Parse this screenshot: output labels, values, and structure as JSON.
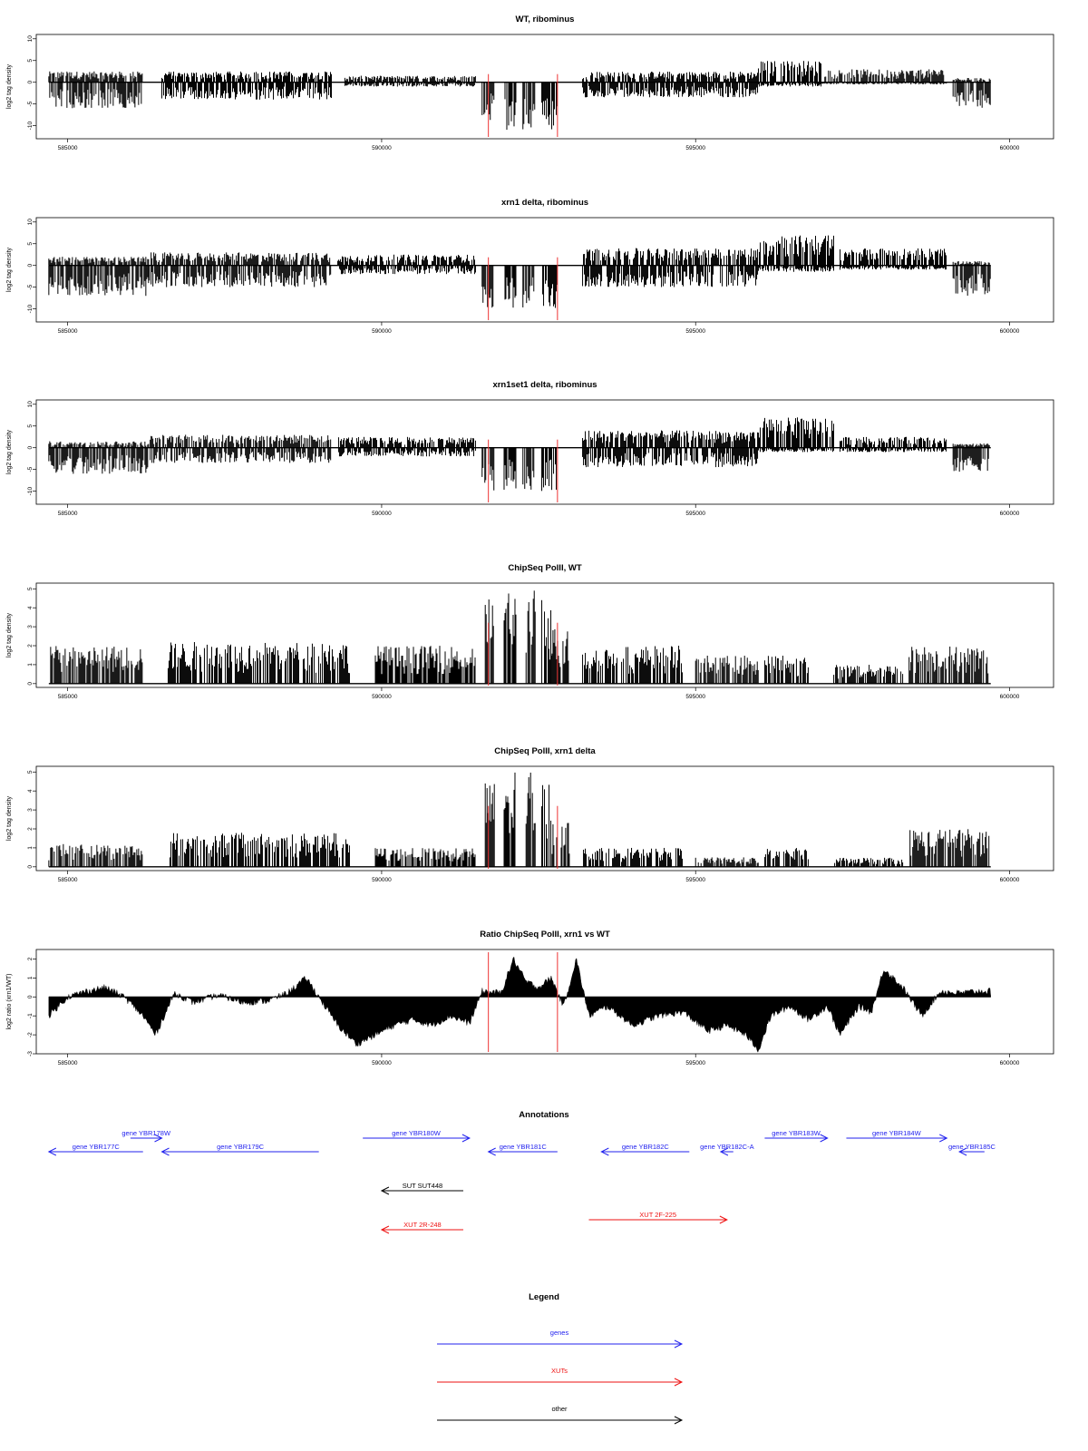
{
  "colors": {
    "gene": "#2222ee",
    "xut": "#ee1111",
    "other": "#000000",
    "marker": "#ee3333",
    "bar": "#000000"
  },
  "chart_data": [
    {
      "type": "bar",
      "title": "WT, ribominus",
      "ylabel": "log2 tag density",
      "xlim": [
        584500,
        600700
      ],
      "ylim": [
        -13,
        11
      ],
      "yticks": [
        -10,
        -5,
        0,
        5,
        10
      ],
      "xticks": [
        585000,
        590000,
        595000,
        600000
      ],
      "x_tick_labels": [
        "585000",
        "590000",
        "595000",
        "600000"
      ],
      "red_markers": [
        591700,
        592800
      ],
      "profile": {
        "baseline": 0,
        "pos": [
          [
            584700,
            586200,
            2.5
          ],
          [
            586500,
            589200,
            2.5
          ],
          [
            589400,
            591500,
            1.5
          ],
          [
            593200,
            596000,
            2.5
          ],
          [
            596000,
            597000,
            5
          ],
          [
            597000,
            599000,
            3
          ],
          [
            599100,
            599700,
            1
          ]
        ],
        "neg": [
          [
            584700,
            586200,
            -6
          ],
          [
            586500,
            589200,
            -4
          ],
          [
            589400,
            591500,
            -1
          ],
          [
            591600,
            591800,
            -10
          ],
          [
            591950,
            592150,
            -11
          ],
          [
            592250,
            592450,
            -11
          ],
          [
            592550,
            592800,
            -11
          ],
          [
            593200,
            596000,
            -3.5
          ],
          [
            596000,
            597000,
            -1
          ],
          [
            597000,
            599000,
            -0.5
          ],
          [
            599100,
            599700,
            -6
          ]
        ]
      }
    },
    {
      "type": "bar",
      "title": "xrn1 delta, ribominus",
      "ylabel": "log2 tag density",
      "xlim": [
        584500,
        600700
      ],
      "ylim": [
        -13,
        11
      ],
      "yticks": [
        -10,
        -5,
        0,
        5,
        10
      ],
      "xticks": [
        585000,
        590000,
        595000,
        600000
      ],
      "x_tick_labels": [
        "585000",
        "590000",
        "595000",
        "600000"
      ],
      "red_markers": [
        591700,
        592800
      ],
      "profile": {
        "baseline": 0,
        "pos": [
          [
            584700,
            586300,
            2
          ],
          [
            586300,
            589200,
            3
          ],
          [
            589300,
            591500,
            2.5
          ],
          [
            593200,
            596000,
            4
          ],
          [
            596000,
            597200,
            7
          ],
          [
            597300,
            599000,
            4
          ],
          [
            599100,
            599700,
            1
          ]
        ],
        "neg": [
          [
            584700,
            586300,
            -7
          ],
          [
            586300,
            589200,
            -5
          ],
          [
            589300,
            591500,
            -2
          ],
          [
            591600,
            591800,
            -10
          ],
          [
            591950,
            592150,
            -10.5
          ],
          [
            592250,
            592450,
            -10.5
          ],
          [
            592550,
            592800,
            -10.5
          ],
          [
            593200,
            596000,
            -5
          ],
          [
            596000,
            597200,
            -1.5
          ],
          [
            597300,
            599000,
            -1
          ],
          [
            599100,
            599700,
            -7
          ]
        ]
      }
    },
    {
      "type": "bar",
      "title": "xrn1set1 delta, ribominus",
      "ylabel": "log2 tag density",
      "xlim": [
        584500,
        600700
      ],
      "ylim": [
        -13,
        11
      ],
      "yticks": [
        -10,
        -5,
        0,
        5,
        10
      ],
      "xticks": [
        585000,
        590000,
        595000,
        600000
      ],
      "x_tick_labels": [
        "585000",
        "590000",
        "595000",
        "600000"
      ],
      "red_markers": [
        591700,
        592800
      ],
      "profile": {
        "baseline": 0,
        "pos": [
          [
            584700,
            586300,
            1.5
          ],
          [
            586300,
            589200,
            3
          ],
          [
            589300,
            591500,
            2.5
          ],
          [
            593200,
            596000,
            4
          ],
          [
            596000,
            597200,
            7
          ],
          [
            597300,
            599000,
            2.5
          ],
          [
            599100,
            599700,
            1
          ]
        ],
        "neg": [
          [
            584700,
            586300,
            -6
          ],
          [
            586300,
            589200,
            -3.5
          ],
          [
            589300,
            591500,
            -2
          ],
          [
            591600,
            591800,
            -10
          ],
          [
            591950,
            592150,
            -10
          ],
          [
            592250,
            592450,
            -10
          ],
          [
            592550,
            592800,
            -10
          ],
          [
            593200,
            596000,
            -4.5
          ],
          [
            596000,
            597200,
            -1
          ],
          [
            597300,
            599000,
            -1
          ],
          [
            599100,
            599700,
            -6
          ]
        ]
      }
    },
    {
      "type": "bar",
      "title": "ChipSeq PolII, WT",
      "ylabel": "log2 tag density",
      "xlim": [
        584500,
        600700
      ],
      "ylim": [
        -0.2,
        5.3
      ],
      "yticks": [
        0,
        1,
        2,
        3,
        4,
        5
      ],
      "xticks": [
        585000,
        590000,
        595000,
        600000
      ],
      "x_tick_labels": [
        "585000",
        "590000",
        "595000",
        "600000"
      ],
      "red_markers": [
        591700,
        592800
      ],
      "profile": {
        "baseline": 0,
        "pos": [
          [
            584700,
            586200,
            2
          ],
          [
            586600,
            589500,
            2.2
          ],
          [
            589900,
            591500,
            2
          ],
          [
            591650,
            591800,
            4.5
          ],
          [
            591950,
            592150,
            5
          ],
          [
            592300,
            592450,
            5
          ],
          [
            592550,
            592700,
            4.5
          ],
          [
            592700,
            593000,
            3
          ],
          [
            593200,
            594800,
            2
          ],
          [
            595000,
            596000,
            1.5
          ],
          [
            596100,
            596800,
            1.5
          ],
          [
            597200,
            598300,
            1
          ],
          [
            598400,
            599700,
            2
          ]
        ],
        "neg": []
      }
    },
    {
      "type": "bar",
      "title": "ChipSeq PolII, xrn1 delta",
      "ylabel": "log2 tag density",
      "xlim": [
        584500,
        600700
      ],
      "ylim": [
        -0.2,
        5.3
      ],
      "yticks": [
        0,
        1,
        2,
        3,
        4,
        5
      ],
      "xticks": [
        585000,
        590000,
        595000,
        600000
      ],
      "x_tick_labels": [
        "585000",
        "590000",
        "595000",
        "600000"
      ],
      "red_markers": [
        591700,
        592800
      ],
      "profile": {
        "baseline": 0,
        "pos": [
          [
            584700,
            586200,
            1.2
          ],
          [
            586600,
            589500,
            1.8
          ],
          [
            589900,
            591500,
            1
          ],
          [
            591650,
            591800,
            4.5
          ],
          [
            591950,
            592150,
            5
          ],
          [
            592300,
            592450,
            5
          ],
          [
            592550,
            592700,
            4.5
          ],
          [
            592700,
            593000,
            2.5
          ],
          [
            593200,
            594800,
            1
          ],
          [
            595000,
            596000,
            0.5
          ],
          [
            596100,
            596800,
            1
          ],
          [
            597200,
            598300,
            0.5
          ],
          [
            598400,
            599700,
            2
          ]
        ],
        "neg": []
      }
    },
    {
      "type": "area",
      "title": "Ratio ChipSeq PolII, xrn1 vs WT",
      "ylabel": "log2 ratio (xrn1/WT)",
      "xlim": [
        584500,
        600700
      ],
      "ylim": [
        -3,
        2.5
      ],
      "yticks": [
        -3,
        -2,
        -1,
        0,
        1,
        2
      ],
      "xticks": [
        585000,
        590000,
        595000,
        600000
      ],
      "x_tick_labels": [
        "585000",
        "590000",
        "595000",
        "600000"
      ],
      "red_markers": [
        591700,
        592800
      ],
      "x": [
        584700,
        585000,
        585300,
        585600,
        585900,
        586200,
        586400,
        586700,
        587000,
        587400,
        587800,
        588200,
        588500,
        588800,
        589000,
        589300,
        589600,
        589900,
        590200,
        590500,
        590800,
        591100,
        591400,
        591600,
        591900,
        592100,
        592300,
        592500,
        592700,
        592900,
        593100,
        593300,
        593600,
        594000,
        594400,
        594800,
        595200,
        595500,
        595800,
        596000,
        596200,
        596500,
        596800,
        597100,
        597300,
        597600,
        597800,
        598000,
        598300,
        598600,
        598900,
        599200,
        599500,
        599700
      ],
      "values": [
        -1,
        0,
        0.3,
        0.5,
        0,
        -1,
        -2,
        0.2,
        -0.3,
        0.1,
        -0.3,
        -0.2,
        0.2,
        1,
        0,
        -1.5,
        -2.5,
        -2,
        -1.5,
        -1.2,
        -1.5,
        -1,
        -1.4,
        0.3,
        0.2,
        2,
        0.8,
        0.5,
        1,
        -0.5,
        2,
        -1,
        -0.5,
        -1.5,
        -1,
        -0.8,
        -1.8,
        -1.5,
        -2,
        -2.8,
        -1,
        -0.5,
        -1.2,
        -0.5,
        -2,
        -0.5,
        -0.8,
        1.5,
        0.5,
        -1,
        0.3,
        0.2,
        0.3,
        0.3
      ]
    }
  ],
  "annotations": {
    "title": "Annotations",
    "features": [
      {
        "label": "gene YBR177C",
        "kind": "gene",
        "start": 584700,
        "end": 586200,
        "strand": "-",
        "row": 1
      },
      {
        "label": "gene YBR178W",
        "kind": "gene",
        "start": 586000,
        "end": 586500,
        "strand": "+",
        "row": 0
      },
      {
        "label": "gene YBR179C",
        "kind": "gene",
        "start": 586500,
        "end": 589000,
        "strand": "-",
        "row": 1
      },
      {
        "label": "gene YBR180W",
        "kind": "gene",
        "start": 589700,
        "end": 591400,
        "strand": "+",
        "row": 0
      },
      {
        "label": "gene YBR181C",
        "kind": "gene",
        "start": 591700,
        "end": 592800,
        "strand": "-",
        "row": 1
      },
      {
        "label": "gene YBR182C",
        "kind": "gene",
        "start": 593500,
        "end": 594900,
        "strand": "-",
        "row": 1
      },
      {
        "label": "gene YBR182C-A",
        "kind": "gene",
        "start": 595400,
        "end": 595600,
        "strand": "-",
        "row": 1
      },
      {
        "label": "gene YBR183W",
        "kind": "gene",
        "start": 596100,
        "end": 597100,
        "strand": "+",
        "row": 0
      },
      {
        "label": "gene YBR184W",
        "kind": "gene",
        "start": 597400,
        "end": 599000,
        "strand": "+",
        "row": 0
      },
      {
        "label": "gene YBR185C",
        "kind": "gene",
        "start": 599200,
        "end": 599600,
        "strand": "-",
        "row": 1
      },
      {
        "label": "SUT SUT448",
        "kind": "other",
        "start": 590000,
        "end": 591300,
        "strand": "-",
        "row": 2
      },
      {
        "label": "XUT 2R-248",
        "kind": "xut",
        "start": 590000,
        "end": 591300,
        "strand": "-",
        "row": 4
      },
      {
        "label": "XUT 2F-225",
        "kind": "xut",
        "start": 593300,
        "end": 595500,
        "strand": "+",
        "row": 3
      }
    ]
  },
  "legend": {
    "title": "Legend",
    "items": [
      {
        "label": "genes",
        "kind": "gene"
      },
      {
        "label": "XUTs",
        "kind": "xut"
      },
      {
        "label": "other",
        "kind": "other"
      }
    ]
  }
}
